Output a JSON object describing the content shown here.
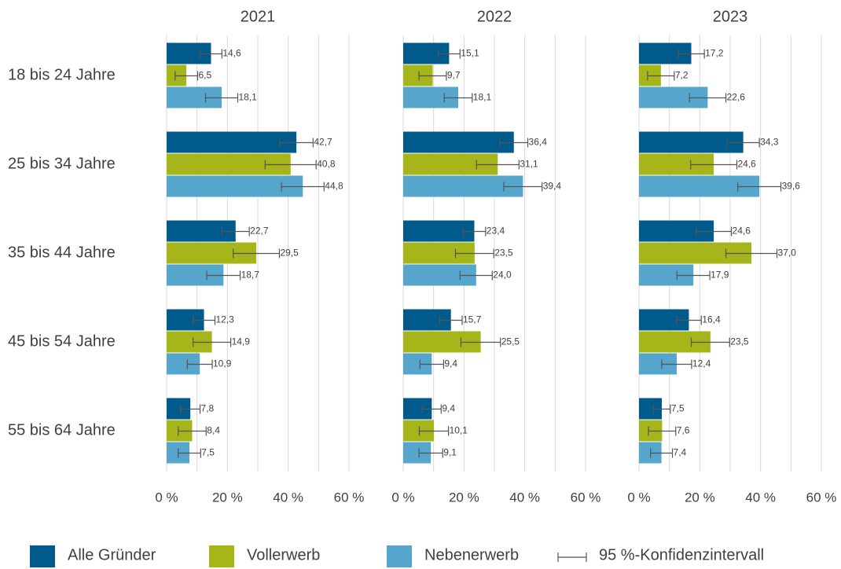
{
  "chart_data": {
    "type": "bar",
    "categories": [
      "18 bis 24 Jahre",
      "25 bis 34 Jahre",
      "35 bis 44 Jahre",
      "45 bis 54 Jahre",
      "55 bis 64 Jahre"
    ],
    "series": [
      {
        "name": "Alle Gründer",
        "color": "#005b8c"
      },
      {
        "name": "Vollerwerb",
        "color": "#a5b51a"
      },
      {
        "name": "Nebenerwerb",
        "color": "#55a5cc"
      }
    ],
    "error_legend": "95 %-Konfidenzintervall",
    "xlim": [
      0,
      60
    ],
    "xticks": [
      {
        "value": 0,
        "label": "0 %"
      },
      {
        "value": 20,
        "label": "20 %"
      },
      {
        "value": 40,
        "label": "40 %"
      },
      {
        "value": 60,
        "label": "60 %"
      }
    ],
    "minor_xticks": [
      10,
      30,
      50
    ],
    "grid": true,
    "panels": [
      {
        "title": "2021",
        "series": [
          {
            "values": [
              14.6,
              42.7,
              22.7,
              12.3,
              7.8
            ],
            "value_labels": [
              "14,6",
              "42,7",
              "22,7",
              "12,3",
              "7,8"
            ],
            "errors": [
              3.6,
              5.5,
              4.5,
              3.6,
              3.2
            ]
          },
          {
            "values": [
              6.5,
              40.8,
              29.5,
              14.9,
              8.4
            ],
            "value_labels": [
              "6,5",
              "40,8",
              "29,5",
              "14,9",
              "8,4"
            ],
            "errors": [
              3.7,
              8.4,
              7.6,
              6.2,
              4.6
            ]
          },
          {
            "values": [
              18.1,
              44.8,
              18.7,
              10.9,
              7.5
            ],
            "value_labels": [
              "18,1",
              "44,8",
              "18,7",
              "10,9",
              "7,5"
            ],
            "errors": [
              5.3,
              7.0,
              5.5,
              4.1,
              3.7
            ]
          }
        ]
      },
      {
        "title": "2022",
        "series": [
          {
            "values": [
              15.1,
              36.4,
              23.4,
              15.7,
              9.4
            ],
            "value_labels": [
              "15,1",
              "36,4",
              "23,4",
              "15,7",
              "9,4"
            ],
            "errors": [
              3.6,
              4.6,
              3.7,
              3.7,
              3.1
            ]
          },
          {
            "values": [
              9.7,
              31.1,
              23.5,
              25.5,
              10.1
            ],
            "value_labels": [
              "9,7",
              "31,1",
              "23,5",
              "25,5",
              "10,1"
            ],
            "errors": [
              4.5,
              7.0,
              6.3,
              6.5,
              4.8
            ]
          },
          {
            "values": [
              18.1,
              39.4,
              24.0,
              9.4,
              9.1
            ],
            "value_labels": [
              "18,1",
              "39,4",
              "24,0",
              "9,4",
              "9,1"
            ],
            "errors": [
              4.6,
              6.3,
              5.3,
              3.9,
              3.9
            ]
          }
        ]
      },
      {
        "title": "2023",
        "series": [
          {
            "values": [
              17.2,
              34.3,
              24.6,
              16.4,
              7.5
            ],
            "value_labels": [
              "17,2",
              "34,3",
              "24,6",
              "16,4",
              "7,5"
            ],
            "errors": [
              4.3,
              5.3,
              5.8,
              4.1,
              2.8
            ]
          },
          {
            "values": [
              7.2,
              24.6,
              37.0,
              23.5,
              7.6
            ],
            "value_labels": [
              "7,2",
              "24,6",
              "37,0",
              "23,5",
              "7,6"
            ],
            "errors": [
              4.4,
              7.6,
              8.4,
              6.3,
              4.5
            ]
          },
          {
            "values": [
              22.6,
              39.6,
              17.9,
              12.4,
              7.4
            ],
            "value_labels": [
              "22,6",
              "39,6",
              "17,9",
              "12,4",
              "7,4"
            ],
            "errors": [
              6.0,
              7.1,
              5.4,
              4.9,
              3.6
            ]
          }
        ]
      }
    ]
  }
}
